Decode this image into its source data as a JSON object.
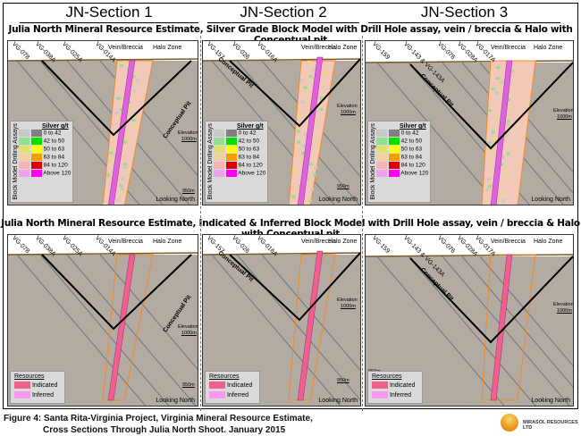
{
  "sections": [
    "JN-Section 1",
    "JN-Section 2",
    "JN-Section 3"
  ],
  "top_title": "Julia North Mineral Resource Estimate, Silver Grade Block Model with Drill Hole assay, vein / breccia & Halo with Conceptual pit",
  "bottom_title": "Julia North Mineral Resource Estimate, Indicated & Inferred Block Model with Drill Hole assay, vein / breccia & Halo with Conceptual pit",
  "labels": {
    "vein": "Vein/Breccia",
    "halo": "Halo Zone",
    "pit": "Conceptual Pit",
    "elev_title": "Elevation",
    "elev_1000": "1000m",
    "elev_950": "950m",
    "looking": "Looking North"
  },
  "drill_holes": [
    [
      "VG-078",
      "VG-038A",
      "VG-025A",
      "VG-014A"
    ],
    [
      "VG-157",
      "VG-026",
      "VG-016A"
    ],
    [
      "VG-159",
      "VG-143 & VG-143A",
      "VG-076",
      "VG-028A",
      "VG-017A"
    ]
  ],
  "silver_legend": {
    "title": "Silver g/t",
    "block_model": "Block Model",
    "drilling_assays": "Drilling Assays",
    "ranges": [
      {
        "label": "0  to 42",
        "block": "#c8c8c8",
        "assay": "#808080"
      },
      {
        "label": "42 to 50",
        "block": "#8fe08f",
        "assay": "#00e000"
      },
      {
        "label": "50 to 63",
        "block": "#e0e070",
        "assay": "#ffff00"
      },
      {
        "label": "63 to 84",
        "block": "#f5cfa0",
        "assay": "#f0a000"
      },
      {
        "label": "84 to 120",
        "block": "#f5b5b5",
        "assay": "#e00000"
      },
      {
        "label": "Above 120",
        "block": "#f0a0f0",
        "assay": "#ff00ff"
      }
    ]
  },
  "resource_legend": {
    "title": "Resources",
    "items": [
      {
        "label": "Indicated",
        "color": "#f0608a"
      },
      {
        "label": "Inferred",
        "color": "#f59af0"
      }
    ]
  },
  "caption": {
    "line1": "Figure 4: Santa Rita-Virginia Project, Virginia Mineral Resource Estimate,",
    "line2": "Cross Sections Through Julia North Shoot. January 2015"
  },
  "logo_text": "MIRASOL RESOURCES LTD",
  "colors": {
    "earth": "#b3aba1",
    "topography": "#7a5a2a",
    "pit": "#000000",
    "halo": "#f08c28",
    "vein": "#e060e0",
    "indicated": "#f0608a"
  }
}
